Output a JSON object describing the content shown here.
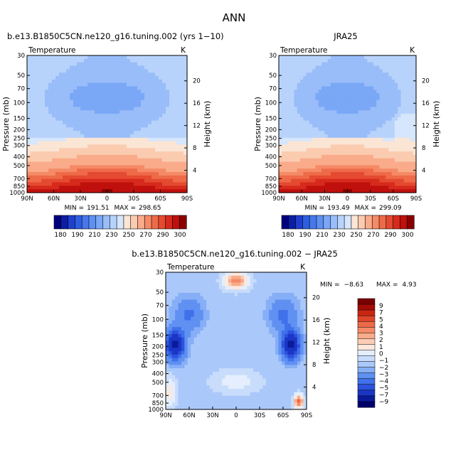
{
  "figure": {
    "title": "ANN"
  },
  "colors": {
    "model_obs_ramp": [
      "#00007f",
      "#0a1fa5",
      "#1f3fcc",
      "#2e5ee0",
      "#4777ec",
      "#5e90f2",
      "#7aa7f6",
      "#99bdf9",
      "#b8d3fb",
      "#d6e6fc",
      "#fbe5d4",
      "#fbcbb0",
      "#f9ab8a",
      "#f58a66",
      "#ee6a48",
      "#e44a30",
      "#d62a1c",
      "#c0100d",
      "#8a0000"
    ],
    "diff_ramp": [
      "#00006a",
      "#0b1a9a",
      "#1b36c6",
      "#2d52de",
      "#4070ea",
      "#5f90f2",
      "#86aff7",
      "#aac8fa",
      "#c8dcfb",
      "#e4eefd",
      "#fde8dc",
      "#fbcdb4",
      "#f8ac8b",
      "#f48b69",
      "#ec6947",
      "#df4629",
      "#c92712",
      "#a30b06",
      "#7a0000"
    ]
  },
  "chart_data": [
    {
      "type": "heatmap",
      "title": "b.e13.B1850C5CN.ne120_g16.tuning.002 (yrs 1−10)",
      "subtitle": "Temperature",
      "units": "K",
      "xlabel": "",
      "ylabel": "Pressure (mb)",
      "ylabel_right": "Height (km)",
      "x_ticks": [
        "90N",
        "60N",
        "30N",
        "0",
        "30S",
        "60S",
        "90S"
      ],
      "y_ticks": [
        "30",
        "50",
        "70",
        "100",
        "150",
        "200",
        "250",
        "300",
        "400",
        "500",
        "700",
        "850",
        "1000"
      ],
      "y_ticks_right": [
        "20",
        "16",
        "12",
        "8",
        "4"
      ],
      "stats": {
        "min_label": "MIN =",
        "min": "191.51",
        "max_label": "MAX =",
        "max": "298.65"
      },
      "colorbar_labels": [
        "180",
        "190",
        "210",
        "230",
        "250",
        "270",
        "290",
        "300"
      ]
    },
    {
      "type": "heatmap",
      "title": "JRA25",
      "subtitle": "Temperature",
      "units": "K",
      "xlabel": "",
      "ylabel": "Pressure (mb)",
      "ylabel_right": "Height (km)",
      "x_ticks": [
        "90N",
        "60N",
        "30N",
        "0",
        "30S",
        "60S",
        "90S"
      ],
      "y_ticks": [
        "30",
        "50",
        "70",
        "100",
        "150",
        "200",
        "250",
        "300",
        "400",
        "500",
        "700",
        "850",
        "1000"
      ],
      "y_ticks_right": [
        "20",
        "16",
        "12",
        "8",
        "4"
      ],
      "stats": {
        "min_label": "MIN =",
        "min": "193.49",
        "max_label": "MAX =",
        "max": "299.09"
      },
      "colorbar_labels": [
        "180",
        "190",
        "210",
        "230",
        "250",
        "270",
        "290",
        "300"
      ]
    },
    {
      "type": "heatmap",
      "title": "b.e13.B1850C5CN.ne120_g16.tuning.002 − JRA25",
      "subtitle": "Temperature",
      "units": "K",
      "xlabel": "",
      "ylabel": "Pressure (mb)",
      "ylabel_right": "Height (km)",
      "x_ticks": [
        "90N",
        "60N",
        "30N",
        "0",
        "30S",
        "60S",
        "90S"
      ],
      "y_ticks": [
        "30",
        "50",
        "70",
        "100",
        "150",
        "200",
        "250",
        "300",
        "400",
        "500",
        "700",
        "850",
        "1000"
      ],
      "y_ticks_right": [
        "20",
        "16",
        "12",
        "8",
        "4"
      ],
      "stats": {
        "min_label": "MIN =",
        "min": "−8.63",
        "max_label": "MAX =",
        "max": "4.93"
      },
      "colorbar_labels": [
        "9",
        "7",
        "5",
        "4",
        "3",
        "2",
        "1",
        "0",
        "−1",
        "−2",
        "−3",
        "−4",
        "−5",
        "−7",
        "−9"
      ]
    }
  ]
}
